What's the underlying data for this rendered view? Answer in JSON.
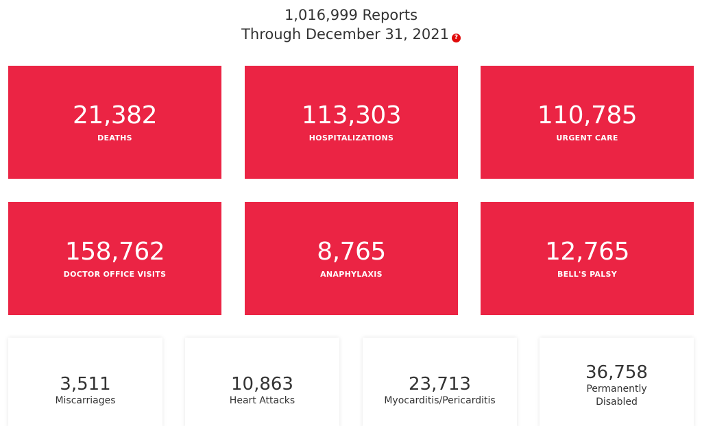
{
  "header": {
    "reports_line": "1,016,999 Reports",
    "through_line": "Through December 31, 2021",
    "help_icon": "?"
  },
  "red_cards": [
    {
      "value": "21,382",
      "label": "DEATHS"
    },
    {
      "value": "113,303",
      "label": "HOSPITALIZATIONS"
    },
    {
      "value": "110,785",
      "label": "URGENT CARE"
    },
    {
      "value": "158,762",
      "label": "DOCTOR OFFICE VISITS"
    },
    {
      "value": "8,765",
      "label": "ANAPHYLAXIS"
    },
    {
      "value": "12,765",
      "label": "BELL'S PALSY"
    }
  ],
  "white_cards": [
    {
      "value": "3,511",
      "label": "Miscarriages"
    },
    {
      "value": "10,863",
      "label": "Heart Attacks"
    },
    {
      "value": "23,713",
      "label": "Myocarditis/Pericarditis"
    },
    {
      "value": "36,758",
      "label_line1": "Permanently",
      "label_line2": "Disabled"
    }
  ],
  "colors": {
    "card_red": "#eb2444",
    "help_red": "#e00b0b",
    "text_dark": "#333333"
  }
}
